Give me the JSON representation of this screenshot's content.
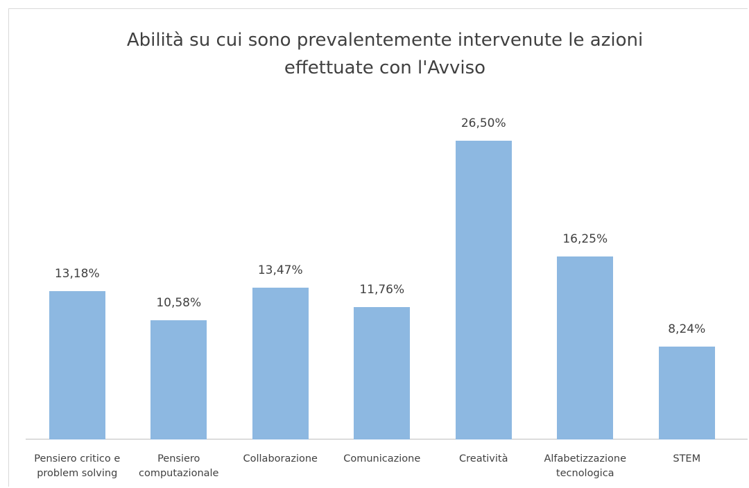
{
  "chart_data": {
    "type": "bar",
    "title": "Abilità su cui sono prevalentemente intervenute le azioni effettuate con l'Avviso",
    "categories": [
      "Pensiero critico e problem solving",
      "Pensiero computazionale",
      "Collaborazione",
      "Comunicazione",
      "Creatività",
      "Alfabetizzazione tecnologica",
      "STEM"
    ],
    "values": [
      13.18,
      10.58,
      13.47,
      11.76,
      26.5,
      16.25,
      8.24
    ],
    "value_labels": [
      "13,18%",
      "10,58%",
      "13,47%",
      "11,76%",
      "26,50%",
      "16,25%",
      "8,24%"
    ],
    "color": "#8db8e1"
  }
}
